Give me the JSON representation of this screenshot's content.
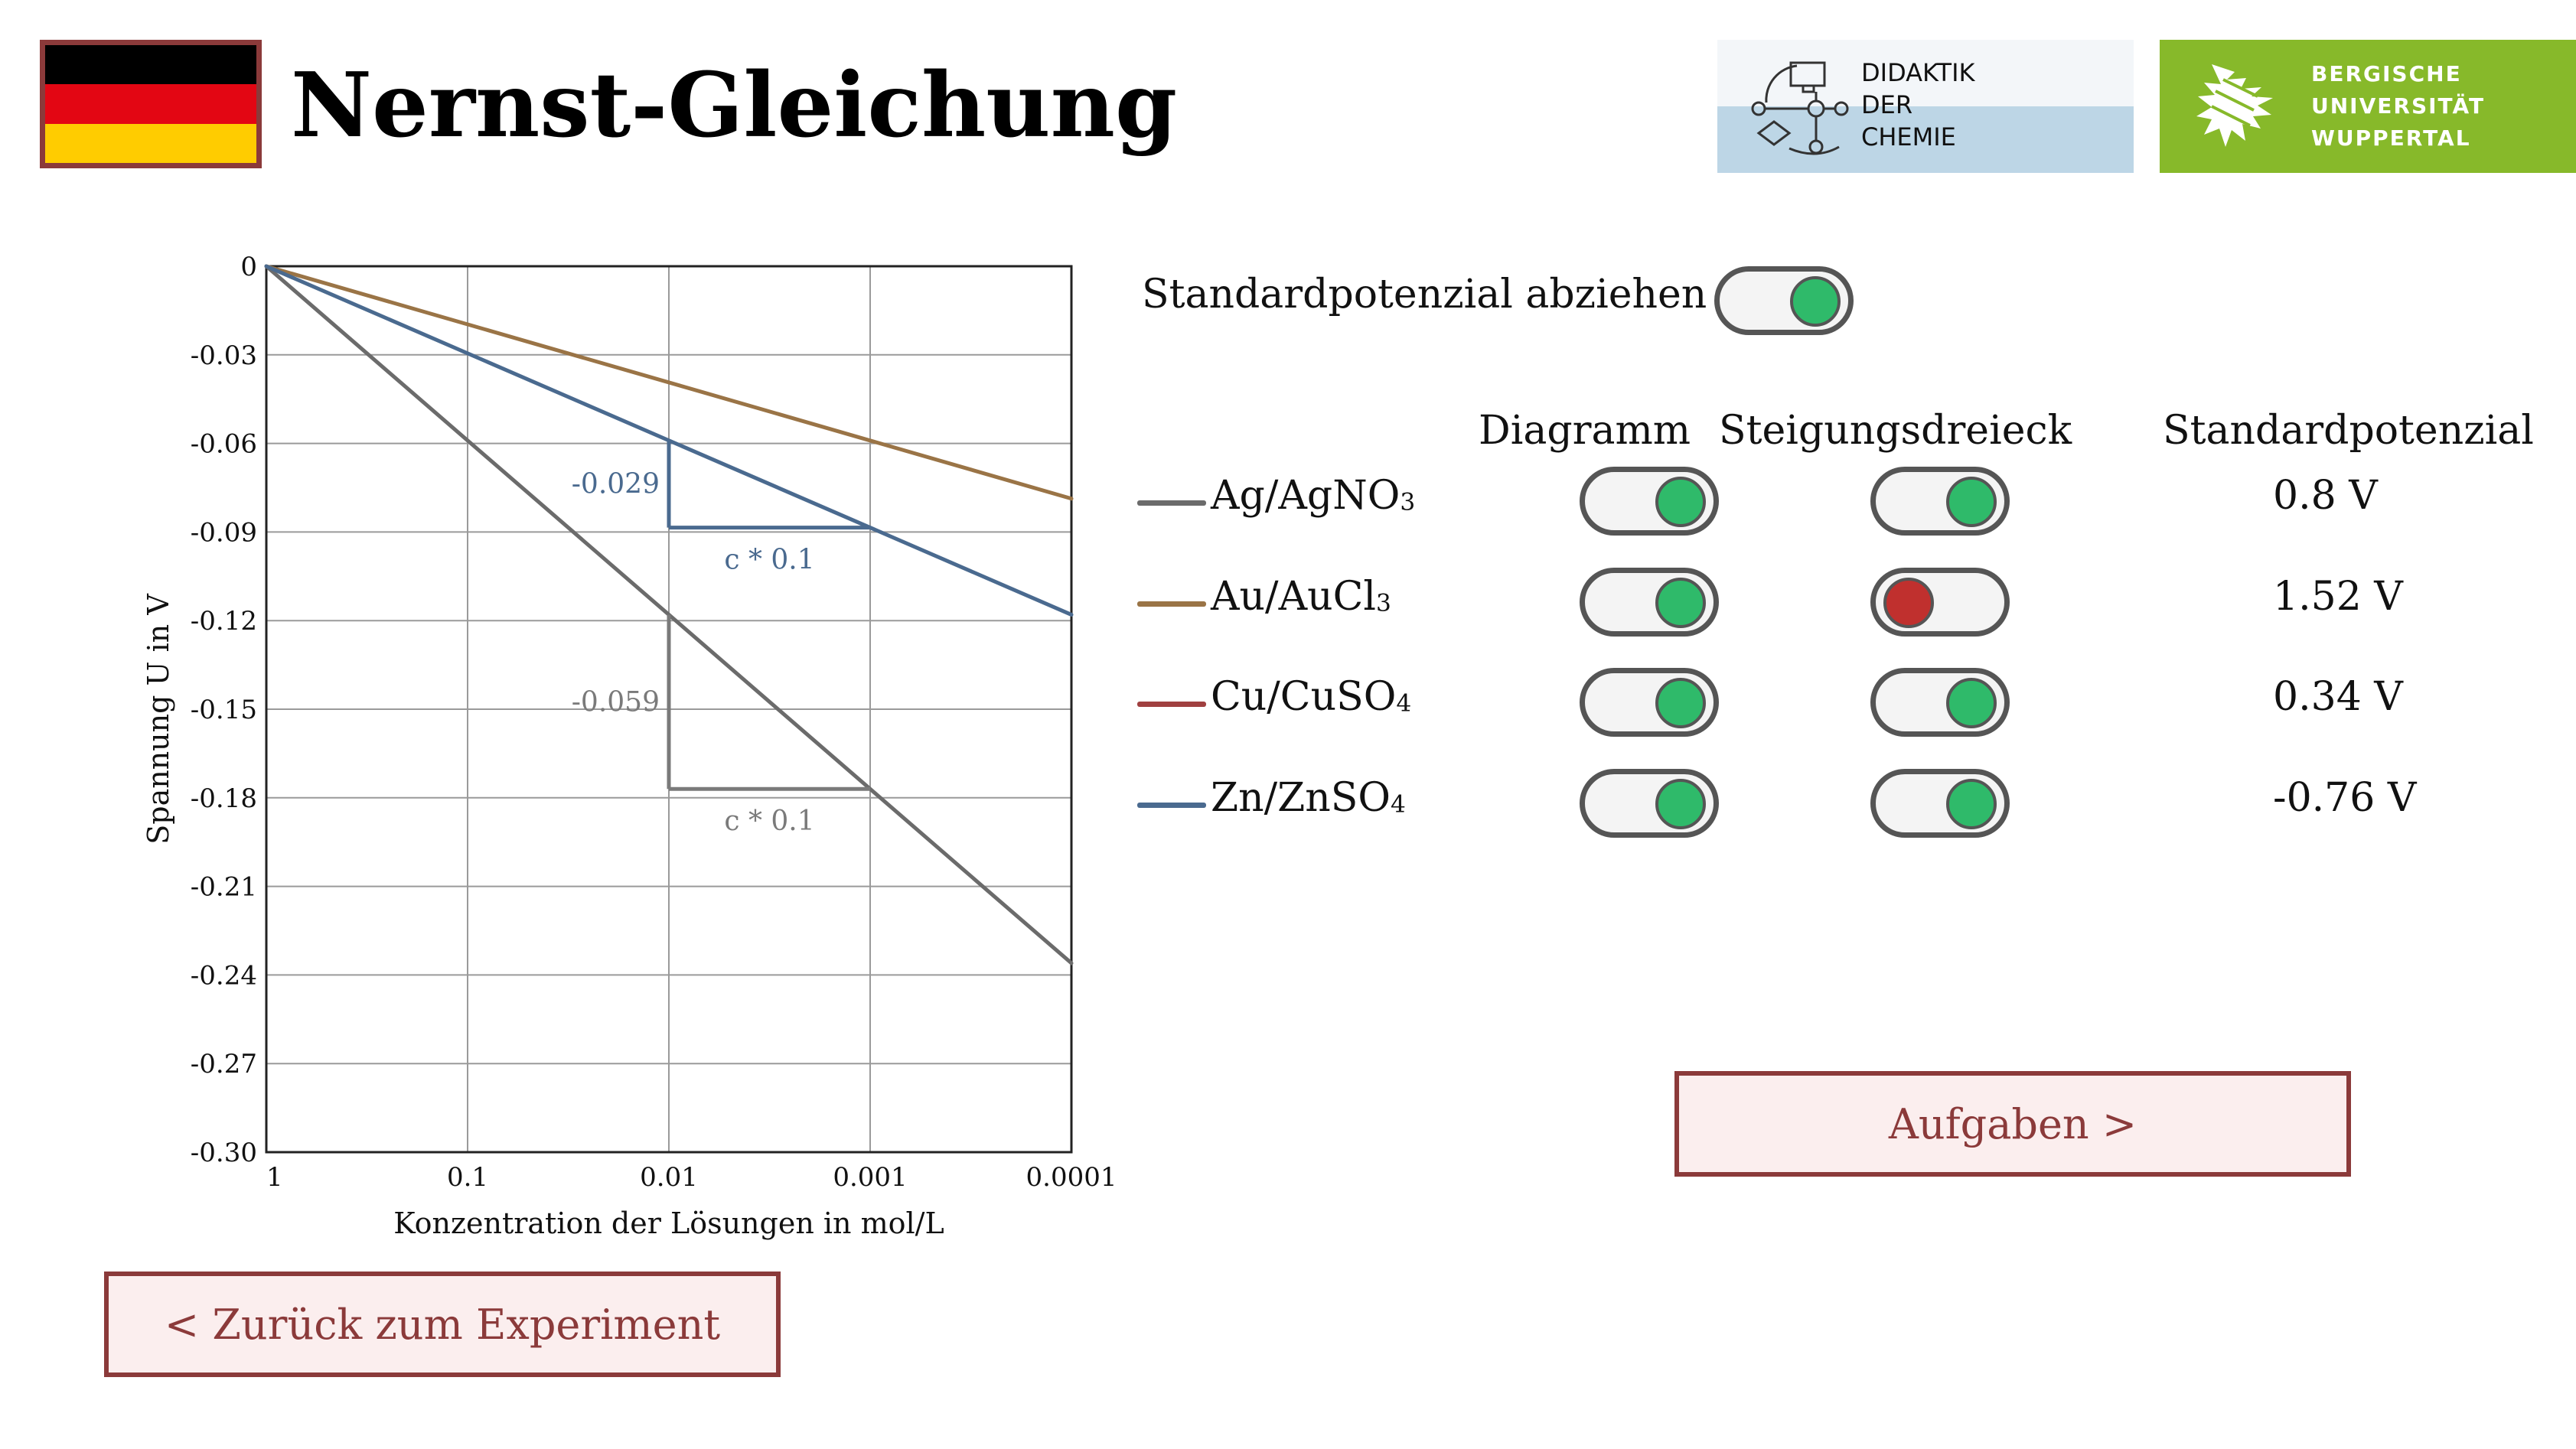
{
  "header": {
    "title": "Nernst-Gleichung",
    "flag_colors": [
      "#000000",
      "#e30613",
      "#ffcc00"
    ],
    "logo_didaktik": [
      "DIDAKTIK",
      "DER",
      "CHEMIE"
    ],
    "logo_buw": [
      "BERGISCHE",
      "UNIVERSITÄT",
      "WUPPERTAL"
    ]
  },
  "chart_data": {
    "type": "line",
    "xlabel": "Konzentration der Lösungen in mol/L",
    "ylabel": "Spannung U in V",
    "x_ticks": [
      "1",
      "0.1",
      "0.01",
      "0.001",
      "0.0001"
    ],
    "y_ticks": [
      "0",
      "-0.03",
      "-0.06",
      "-0.09",
      "-0.12",
      "-0.15",
      "-0.18",
      "-0.21",
      "-0.24",
      "-0.27",
      "-0.30"
    ],
    "ylim": [
      -0.3,
      0
    ],
    "x_scale": "log",
    "grid": true,
    "series": [
      {
        "name": "Ag/AgNO3",
        "color": "#6b6b6b",
        "x": [
          1,
          0.0001
        ],
        "y": [
          0,
          -0.236
        ]
      },
      {
        "name": "Au/AuCl3",
        "color": "#9a7446",
        "x": [
          1,
          0.0001
        ],
        "y": [
          0,
          -0.0787
        ]
      },
      {
        "name": "Zn/ZnSO4",
        "color": "#4a6a8f",
        "x": [
          1,
          0.0001
        ],
        "y": [
          0,
          -0.118
        ]
      }
    ],
    "annotations": [
      {
        "series": "Zn/ZnSO4",
        "x_from": 0.01,
        "x_to": 0.001,
        "y_from": -0.059,
        "y_to": -0.0885,
        "dy_label": "-0.029",
        "dx_label": "c * 0.1",
        "color": "#4a6a8f"
      },
      {
        "series": "Ag/AgNO3",
        "x_from": 0.01,
        "x_to": 0.001,
        "y_from": -0.118,
        "y_to": -0.177,
        "dy_label": "-0.059",
        "dx_label": "c * 0.1",
        "color": "#7a7a7a"
      }
    ]
  },
  "controls": {
    "subtract_label": "Standardpotenzial abziehen",
    "subtract_on": true,
    "col_diagram": "Diagramm",
    "col_triangle": "Steigungsdreieck",
    "col_potential": "Standardpotenzial",
    "rows": [
      {
        "name_main": "Ag/AgNO",
        "name_sub": "3",
        "color": "#6b6b6b",
        "diagram": true,
        "triangle": true,
        "potential": "0.8 V"
      },
      {
        "name_main": "Au/AuCl",
        "name_sub": "3",
        "color": "#9a7446",
        "diagram": true,
        "triangle": false,
        "potential": "1.52 V"
      },
      {
        "name_main": "Cu/CuSO",
        "name_sub": "4",
        "color": "#a04040",
        "diagram": true,
        "triangle": true,
        "potential": "0.34 V"
      },
      {
        "name_main": "Zn/ZnSO",
        "name_sub": "4",
        "color": "#4a6a8f",
        "diagram": true,
        "triangle": true,
        "potential": "-0.76 V"
      }
    ]
  },
  "buttons": {
    "tasks": "Aufgaben >",
    "back": "< Zurück zum Experiment"
  }
}
